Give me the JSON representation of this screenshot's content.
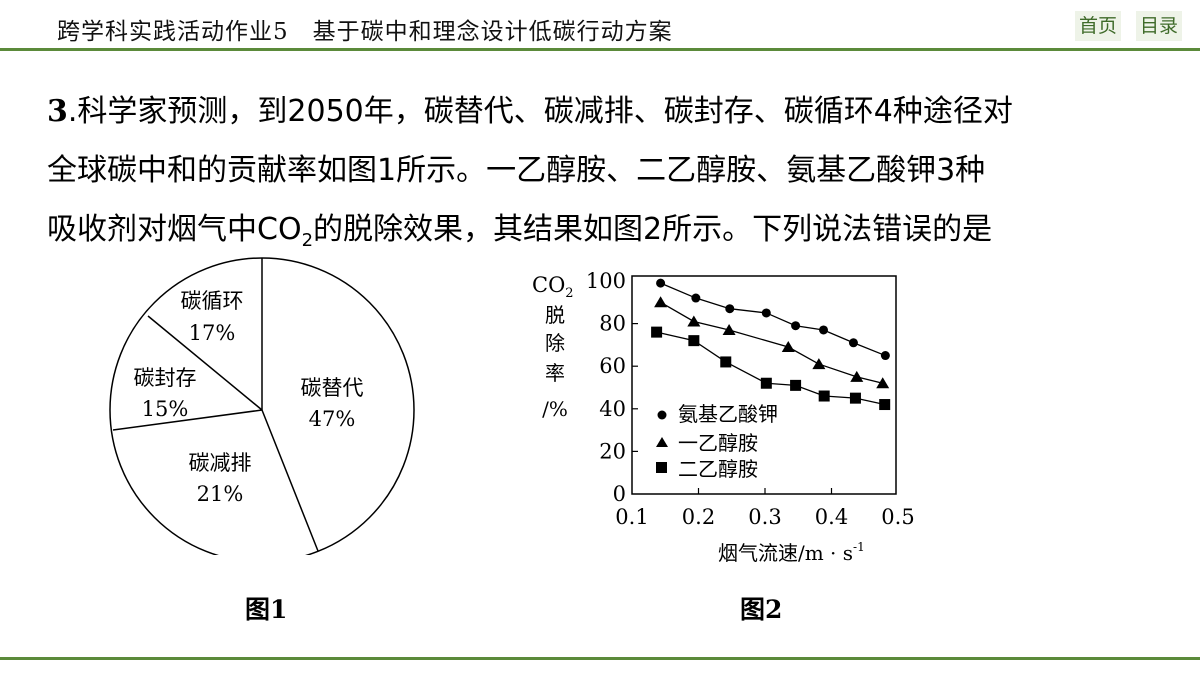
{
  "header": {
    "title": "跨学科实践活动作业5　基于碳中和理念设计低碳行动方案",
    "nav": [
      {
        "label": "首页"
      },
      {
        "label": "目录"
      }
    ]
  },
  "question": {
    "number": "3",
    "line1": ".科学家预测，到2050年，碳替代、碳减排、碳封存、碳循环4种途径对",
    "line2": "全球碳中和的贡献率如图1所示。一乙醇胺、二乙醇胺、氨基乙酸钾3种",
    "line3_pre": "吸收剂对烟气中CO",
    "line3_sub": "2",
    "line3_post": "的脱除效果，其结果如图2所示。下列说法错误的是"
  },
  "figures": {
    "fig1_caption": "图1",
    "fig2_caption": "图2"
  },
  "colors": {
    "accent": "#5b8a3a",
    "nav_bg": "#eef3e8",
    "nav_text": "#3f6b2a"
  },
  "chart_data": [
    {
      "type": "pie",
      "title": "图1",
      "categories": [
        "碳替代",
        "碳减排",
        "碳封存",
        "碳循环"
      ],
      "values": [
        47,
        21,
        15,
        17
      ],
      "labels": [
        "47%",
        "21%",
        "15%",
        "17%"
      ]
    },
    {
      "type": "line",
      "title": "图2",
      "xlabel": "烟气流速/m·s⁻¹",
      "ylabel": "CO₂脱除率/%",
      "xlim": [
        0.1,
        0.5
      ],
      "ylim": [
        0,
        100
      ],
      "xticks": [
        "0.1",
        "0.2",
        "0.3",
        "0.4",
        "0.5"
      ],
      "yticks": [
        "0",
        "20",
        "40",
        "60",
        "80",
        "100"
      ],
      "grid": false,
      "legend_position": "inside-lower-left",
      "series": [
        {
          "name": "氨基乙酸钾",
          "marker": "circle",
          "x": [
            0.143,
            0.196,
            0.247,
            0.302,
            0.346,
            0.388,
            0.433,
            0.481
          ],
          "y": [
            99,
            92,
            87,
            85,
            79,
            77,
            71,
            65
          ]
        },
        {
          "name": "一乙醇胺",
          "marker": "triangle",
          "x": [
            0.143,
            0.193,
            0.246,
            0.335,
            0.381,
            0.438,
            0.477
          ],
          "y": [
            90,
            81,
            77,
            69,
            61,
            55,
            52
          ]
        },
        {
          "name": "二乙醇胺",
          "marker": "square",
          "x": [
            0.137,
            0.193,
            0.241,
            0.302,
            0.346,
            0.389,
            0.436,
            0.48
          ],
          "y": [
            76,
            72,
            62,
            52,
            51,
            46,
            45,
            42
          ]
        }
      ]
    }
  ],
  "pie_labels": [
    {
      "name": "碳替代",
      "pct": "47%"
    },
    {
      "name": "碳减排",
      "pct": "21%"
    },
    {
      "name": "碳封存",
      "pct": "15%"
    },
    {
      "name": "碳循环",
      "pct": "17%"
    }
  ],
  "plot_labels": {
    "ylabel_co": "CO",
    "ylabel_sub": "2",
    "ylabel_chars": [
      "脱",
      "除",
      "率",
      "/%"
    ],
    "xlabel_main": "烟气流速/m · s",
    "xlabel_sup": "-1",
    "yticks": [
      "100",
      "80",
      "60",
      "40",
      "20",
      "0"
    ],
    "xticks": [
      "0.1",
      "0.2",
      "0.3",
      "0.4",
      "0.5"
    ],
    "legend": [
      "氨基乙酸钾",
      "一乙醇胺",
      "二乙醇胺"
    ]
  }
}
